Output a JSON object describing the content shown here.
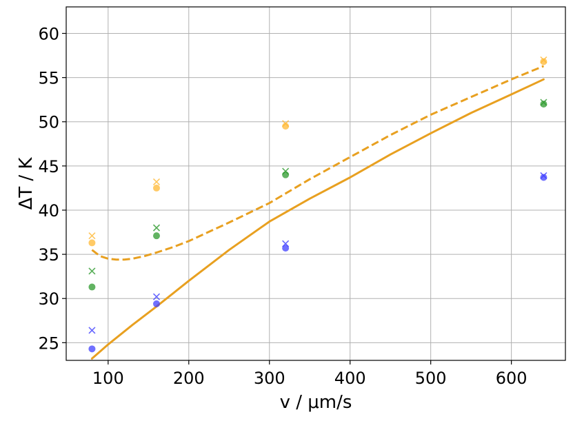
{
  "chart_data": {
    "type": "scatter",
    "title": "",
    "xlabel": "v / μm/s",
    "ylabel": "ΔT / K",
    "xlim": [
      48,
      667
    ],
    "ylim": [
      23,
      63
    ],
    "xticks": [
      100,
      200,
      300,
      400,
      500,
      600
    ],
    "yticks": [
      25,
      30,
      35,
      40,
      45,
      50,
      55,
      60
    ],
    "grid": true,
    "legend": "none",
    "series": [
      {
        "kind": "scatter",
        "marker": "circle",
        "color": "#4040ff",
        "x": [
          80,
          160,
          320,
          640
        ],
        "y": [
          24.3,
          29.4,
          35.7,
          43.7
        ]
      },
      {
        "kind": "scatter",
        "marker": "cross",
        "color": "#4040ff",
        "x": [
          80,
          160,
          320,
          640
        ],
        "y": [
          26.4,
          30.2,
          36.2,
          43.9
        ]
      },
      {
        "kind": "scatter",
        "marker": "circle",
        "color": "#2e9a2e",
        "x": [
          80,
          160,
          320,
          640
        ],
        "y": [
          31.3,
          37.1,
          44.0,
          52.0
        ]
      },
      {
        "kind": "scatter",
        "marker": "cross",
        "color": "#2e9a2e",
        "x": [
          80,
          160,
          320,
          640
        ],
        "y": [
          33.1,
          38.0,
          44.4,
          52.2
        ]
      },
      {
        "kind": "scatter",
        "marker": "circle",
        "color": "#ffb833",
        "x": [
          80,
          160,
          320,
          640
        ],
        "y": [
          36.3,
          42.5,
          49.5,
          56.8
        ]
      },
      {
        "kind": "scatter",
        "marker": "cross",
        "color": "#ffb833",
        "x": [
          80,
          160,
          320,
          640
        ],
        "y": [
          37.1,
          43.2,
          49.8,
          57.0
        ]
      },
      {
        "kind": "line",
        "style": "solid",
        "color": "#e8a020",
        "x": [
          80,
          100,
          130,
          160,
          200,
          250,
          300,
          350,
          400,
          450,
          500,
          550,
          600,
          640
        ],
        "y": [
          23.2,
          24.8,
          27.0,
          29.1,
          32.0,
          35.5,
          38.7,
          41.3,
          43.7,
          46.3,
          48.7,
          51.0,
          53.1,
          54.8
        ]
      },
      {
        "kind": "line",
        "style": "dashed",
        "color": "#e8a020",
        "x": [
          80,
          90,
          100,
          110,
          120,
          130,
          145,
          160,
          180,
          200,
          250,
          300,
          350,
          400,
          450,
          500,
          550,
          600,
          640
        ],
        "y": [
          35.5,
          34.8,
          34.5,
          34.4,
          34.4,
          34.5,
          34.8,
          35.2,
          35.8,
          36.5,
          38.6,
          40.8,
          43.5,
          46.0,
          48.5,
          50.8,
          52.8,
          54.8,
          56.3
        ]
      }
    ]
  }
}
